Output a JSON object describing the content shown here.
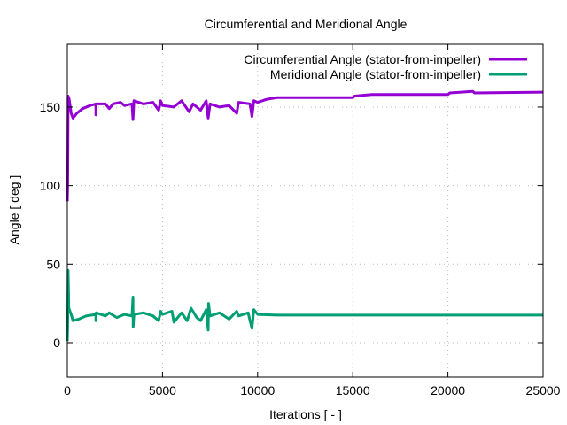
{
  "chart_data": {
    "type": "line",
    "title": "Circumferential and Meridional Angle",
    "xlabel": "Iterations [ - ]",
    "ylabel": "Angle [ deg ]",
    "xlim": [
      0,
      25000
    ],
    "ylim": [
      -22,
      190
    ],
    "xticks": [
      0,
      5000,
      10000,
      15000,
      20000,
      25000
    ],
    "yticks": [
      0,
      50,
      100,
      150
    ],
    "grid": true,
    "legend_position": "top-right",
    "series": [
      {
        "name": "Circumferential Angle (stator-from-impeller)",
        "color": "#9400d3",
        "points": [
          [
            0,
            90
          ],
          [
            20,
            100
          ],
          [
            40,
            157
          ],
          [
            100,
            155
          ],
          [
            200,
            146
          ],
          [
            300,
            143
          ],
          [
            500,
            146
          ],
          [
            800,
            149
          ],
          [
            1200,
            151
          ],
          [
            1500,
            152
          ],
          [
            1500,
            145
          ],
          [
            1520,
            152
          ],
          [
            2000,
            152
          ],
          [
            2200,
            149
          ],
          [
            2400,
            152
          ],
          [
            2800,
            153
          ],
          [
            3000,
            151
          ],
          [
            3400,
            152
          ],
          [
            3450,
            142
          ],
          [
            3500,
            154
          ],
          [
            4000,
            152
          ],
          [
            4500,
            153
          ],
          [
            4800,
            148
          ],
          [
            4900,
            154
          ],
          [
            5000,
            151
          ],
          [
            5600,
            150
          ],
          [
            6000,
            154
          ],
          [
            6400,
            147
          ],
          [
            6600,
            152
          ],
          [
            7000,
            148
          ],
          [
            7300,
            154
          ],
          [
            7400,
            143
          ],
          [
            7500,
            152
          ],
          [
            8000,
            150
          ],
          [
            8500,
            151
          ],
          [
            8900,
            146
          ],
          [
            9000,
            153
          ],
          [
            9600,
            152
          ],
          [
            9700,
            144
          ],
          [
            9800,
            154
          ],
          [
            10000,
            153
          ],
          [
            10500,
            155
          ],
          [
            11000,
            156
          ],
          [
            15000,
            156
          ],
          [
            15100,
            157
          ],
          [
            16000,
            158
          ],
          [
            20000,
            158
          ],
          [
            20100,
            159
          ],
          [
            21300,
            160
          ],
          [
            21400,
            159
          ],
          [
            25000,
            159.5
          ]
        ]
      },
      {
        "name": "Meridional Angle (stator-from-impeller)",
        "color": "#009e73",
        "points": [
          [
            0,
            1
          ],
          [
            20,
            10
          ],
          [
            40,
            46
          ],
          [
            80,
            22
          ],
          [
            200,
            18
          ],
          [
            300,
            14
          ],
          [
            600,
            15
          ],
          [
            1000,
            17
          ],
          [
            1500,
            18
          ],
          [
            1500,
            14
          ],
          [
            1520,
            19
          ],
          [
            2000,
            17
          ],
          [
            2200,
            19
          ],
          [
            2600,
            16
          ],
          [
            3000,
            18
          ],
          [
            3400,
            17
          ],
          [
            3450,
            29
          ],
          [
            3460,
            10
          ],
          [
            3500,
            18
          ],
          [
            4000,
            19
          ],
          [
            4500,
            17
          ],
          [
            4800,
            14
          ],
          [
            4900,
            20
          ],
          [
            5000,
            18
          ],
          [
            5500,
            20
          ],
          [
            5600,
            13
          ],
          [
            6000,
            19
          ],
          [
            6300,
            14
          ],
          [
            6500,
            22
          ],
          [
            6800,
            16
          ],
          [
            7000,
            14
          ],
          [
            7300,
            21
          ],
          [
            7400,
            8
          ],
          [
            7420,
            25
          ],
          [
            7500,
            17
          ],
          [
            8000,
            19
          ],
          [
            8500,
            15
          ],
          [
            8900,
            20
          ],
          [
            9000,
            17
          ],
          [
            9500,
            19
          ],
          [
            9700,
            9
          ],
          [
            9800,
            21
          ],
          [
            10000,
            18
          ],
          [
            11000,
            17.5
          ],
          [
            25000,
            17.5
          ]
        ]
      }
    ]
  }
}
